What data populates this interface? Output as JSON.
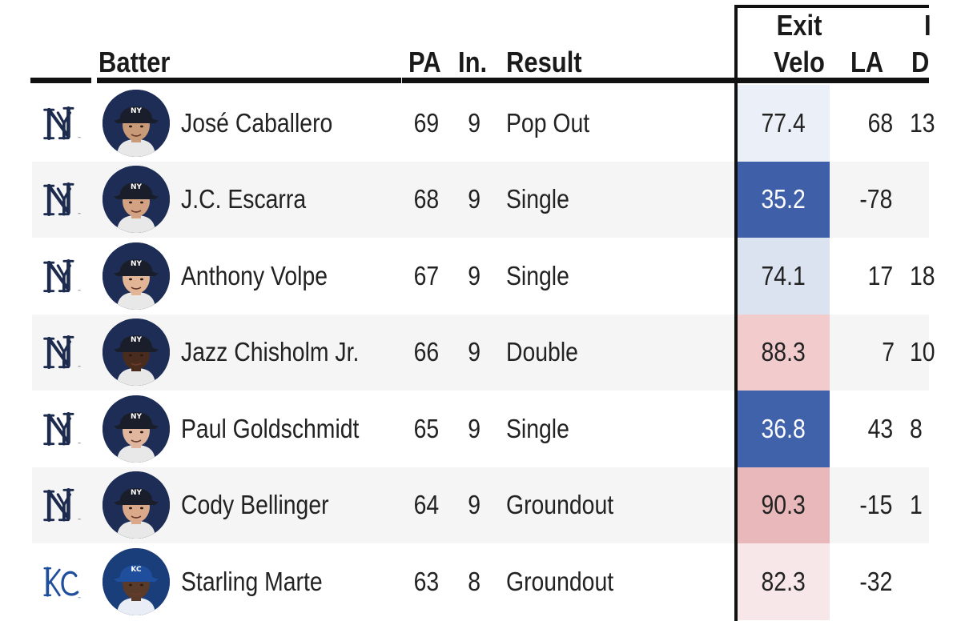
{
  "header": {
    "batter": "Batter",
    "pa": "PA",
    "inning": "In.",
    "result": "Result",
    "exit_velo_line1": "Exit",
    "exit_velo_line2": "Velo",
    "la": "LA",
    "dist_line1": "I",
    "dist_line2": "D"
  },
  "rows": [
    {
      "team": "NYY",
      "logo_icon": "yankees-logo-icon",
      "name": "José Caballero",
      "pa": "69",
      "inning": "9",
      "result": "Pop Out",
      "exit_velo": "77.4",
      "ev_color": "#eaeff8",
      "launch_angle": "68",
      "distance": "13",
      "helmet": "#1a1d2a",
      "skin": "#c89a78"
    },
    {
      "team": "NYY",
      "logo_icon": "yankees-logo-icon",
      "name": "J.C. Escarra",
      "pa": "68",
      "inning": "9",
      "result": "Single",
      "exit_velo": "35.2",
      "ev_color": "#3f60a8",
      "launch_angle": "-78",
      "distance": "",
      "helmet": "#1a1d2a",
      "skin": "#d2a283"
    },
    {
      "team": "NYY",
      "logo_icon": "yankees-logo-icon",
      "name": "Anthony Volpe",
      "pa": "67",
      "inning": "9",
      "result": "Single",
      "exit_velo": "74.1",
      "ev_color": "#dbe3f0",
      "launch_angle": "17",
      "distance": "18",
      "helmet": "#1a1d2a",
      "skin": "#e2b596"
    },
    {
      "team": "NYY",
      "logo_icon": "yankees-logo-icon",
      "name": "Jazz Chisholm Jr.",
      "pa": "66",
      "inning": "9",
      "result": "Double",
      "exit_velo": "88.3",
      "ev_color": "#f2cccd",
      "launch_angle": "7",
      "distance": "10",
      "helmet": "#1a1d2a",
      "skin": "#4a2c1e"
    },
    {
      "team": "NYY",
      "logo_icon": "yankees-logo-icon",
      "name": "Paul Goldschmidt",
      "pa": "65",
      "inning": "9",
      "result": "Single",
      "exit_velo": "36.8",
      "ev_color": "#4062ab",
      "launch_angle": "43",
      "distance": "8",
      "helmet": "#1a1d2a",
      "skin": "#e0b79e"
    },
    {
      "team": "NYY",
      "logo_icon": "yankees-logo-icon",
      "name": "Cody Bellinger",
      "pa": "64",
      "inning": "9",
      "result": "Groundout",
      "exit_velo": "90.3",
      "ev_color": "#e9b8ba",
      "launch_angle": "-15",
      "distance": "1",
      "helmet": "#1a1d2a",
      "skin": "#d9a98a"
    },
    {
      "team": "KC",
      "logo_icon": "royals-logo-icon",
      "name": "Starling Marte",
      "pa": "63",
      "inning": "8",
      "result": "Groundout",
      "exit_velo": "82.3",
      "ev_color": "#f8e7e8",
      "launch_angle": "-32",
      "distance": "",
      "helmet": "#1f4f9c",
      "skin": "#5a3a28"
    }
  ]
}
